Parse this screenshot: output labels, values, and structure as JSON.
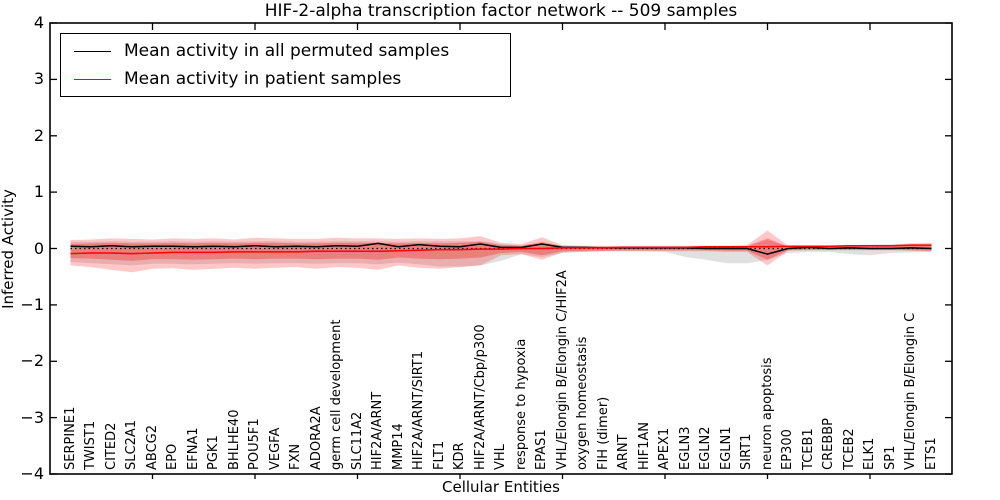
{
  "title": "HIF-2-alpha transcription factor network -- 509 samples",
  "axes": {
    "xlabel": "Cellular Entities",
    "ylabel": "Inferred Activity",
    "ytick_labels": [
      "4",
      "3",
      "2",
      "1",
      "0",
      "−1",
      "−2",
      "−3",
      "−4"
    ]
  },
  "legend": {
    "items": [
      {
        "label": "Mean activity in all permuted samples",
        "color": "#000000"
      },
      {
        "label": "Mean activity in patient samples",
        "color": "#ff0000"
      }
    ]
  },
  "chart_data": {
    "type": "line",
    "title": "HIF-2-alpha transcription factor network -- 509 samples",
    "xlabel": "Cellular Entities",
    "ylabel": "Inferred Activity",
    "ylim": [
      -4,
      4
    ],
    "xlim": [
      0,
      44
    ],
    "ytick_step": 1,
    "xtick_step": 5,
    "grid": false,
    "legend_position": "upper left",
    "zero_reference_line": 0,
    "categories": [
      "SERPINE1",
      "TWIST1",
      "CITED2",
      "SLC2A1",
      "ABCG2",
      "EPO",
      "EFNA1",
      "PGK1",
      "BHLHE40",
      "POU5F1",
      "VEGFA",
      "FXN",
      "ADORA2A",
      "germ cell development",
      "SLC11A2",
      "HIF2A/ARNT",
      "MMP14",
      "HIF2A/ARNT/SIRT1",
      "FLT1",
      "KDR",
      "HIF2A/ARNT/Cbp/p300",
      "VHL",
      "response to hypoxia",
      "EPAS1",
      "VHL/Elongin B/Elongin C/HIF2A",
      "oxygen homeostasis",
      "FIH (dimer)",
      "ARNT",
      "HIF1AN",
      "APEX1",
      "EGLN3",
      "EGLN2",
      "EGLN1",
      "SIRT1",
      "neuron apoptosis",
      "EP300",
      "TCEB1",
      "CREBBP",
      "TCEB2",
      "ELK1",
      "SP1",
      "VHL/Elongin B/Elongin C",
      "ETS1"
    ],
    "series": [
      {
        "name": "Mean activity in all permuted samples",
        "color": "#000000",
        "style": "solid",
        "values": [
          0.04,
          0.03,
          0.05,
          0.03,
          0.04,
          0.04,
          0.03,
          0.04,
          0.03,
          0.05,
          0.03,
          0.04,
          0.03,
          0.05,
          0.04,
          0.09,
          0.03,
          0.07,
          0.04,
          0.03,
          0.08,
          0.02,
          0.02,
          0.08,
          0.02,
          0.02,
          0.01,
          0.01,
          0.01,
          0.01,
          0.01,
          0.0,
          0.0,
          0.0,
          -0.1,
          0.0,
          0.02,
          0.0,
          0.01,
          0.0,
          0.0,
          0.01,
          0.0
        ]
      },
      {
        "name": "Mean activity in patient samples",
        "color": "#ff0000",
        "style": "solid",
        "values": [
          -0.09,
          -0.08,
          -0.08,
          -0.09,
          -0.08,
          -0.07,
          -0.07,
          -0.07,
          -0.06,
          -0.06,
          -0.06,
          -0.06,
          -0.05,
          -0.05,
          -0.05,
          -0.05,
          -0.04,
          -0.03,
          -0.02,
          -0.02,
          -0.01,
          -0.01,
          0.0,
          0.0,
          0.01,
          0.01,
          0.01,
          0.02,
          0.02,
          0.02,
          0.02,
          0.03,
          0.03,
          0.03,
          0.03,
          0.04,
          0.04,
          0.04,
          0.05,
          0.05,
          0.05,
          0.06,
          0.06
        ]
      }
    ],
    "bands": [
      {
        "name": "permuted-samples-spread",
        "color": "#000000",
        "opacity": 0.12,
        "upper": [
          0.12,
          0.12,
          0.13,
          0.12,
          0.12,
          0.13,
          0.12,
          0.13,
          0.12,
          0.13,
          0.13,
          0.12,
          0.12,
          0.13,
          0.13,
          0.13,
          0.12,
          0.13,
          0.13,
          0.13,
          0.13,
          0.08,
          0.05,
          0.1,
          0.05,
          0.04,
          0.04,
          0.04,
          0.04,
          0.04,
          0.04,
          0.04,
          0.04,
          0.05,
          0.15,
          0.04,
          0.04,
          0.04,
          0.05,
          0.05,
          0.05,
          0.06,
          0.06
        ],
        "lower": [
          -0.24,
          -0.26,
          -0.28,
          -0.3,
          -0.27,
          -0.27,
          -0.28,
          -0.27,
          -0.26,
          -0.27,
          -0.26,
          -0.26,
          -0.27,
          -0.26,
          -0.26,
          -0.28,
          -0.25,
          -0.28,
          -0.32,
          -0.32,
          -0.3,
          -0.22,
          -0.1,
          -0.15,
          -0.08,
          -0.06,
          -0.05,
          -0.05,
          -0.05,
          -0.06,
          -0.15,
          -0.2,
          -0.26,
          -0.26,
          -0.2,
          -0.08,
          -0.06,
          -0.06,
          -0.1,
          -0.12,
          -0.08,
          -0.07,
          -0.07
        ]
      },
      {
        "name": "patient-samples-outer-spread",
        "color": "#ff0000",
        "opacity": 0.22,
        "upper": [
          0.15,
          0.16,
          0.18,
          0.17,
          0.16,
          0.18,
          0.17,
          0.18,
          0.16,
          0.19,
          0.18,
          0.17,
          0.17,
          0.19,
          0.18,
          0.18,
          0.17,
          0.18,
          0.17,
          0.18,
          0.22,
          0.1,
          0.08,
          0.2,
          0.06,
          0.05,
          0.05,
          0.05,
          0.05,
          0.05,
          0.05,
          0.05,
          0.05,
          0.06,
          0.32,
          0.05,
          0.04,
          0.04,
          0.06,
          0.07,
          0.07,
          0.09,
          0.1
        ],
        "lower": [
          -0.3,
          -0.33,
          -0.38,
          -0.42,
          -0.36,
          -0.35,
          -0.38,
          -0.36,
          -0.34,
          -0.36,
          -0.34,
          -0.33,
          -0.36,
          -0.33,
          -0.34,
          -0.38,
          -0.3,
          -0.34,
          -0.36,
          -0.33,
          -0.3,
          -0.12,
          -0.1,
          -0.2,
          -0.07,
          -0.06,
          -0.05,
          -0.05,
          -0.05,
          -0.05,
          -0.05,
          -0.05,
          -0.06,
          -0.06,
          -0.3,
          -0.04,
          -0.03,
          -0.03,
          -0.03,
          -0.03,
          -0.03,
          -0.04,
          -0.05
        ]
      },
      {
        "name": "patient-samples-inner-spread",
        "color": "#ff0000",
        "opacity": 0.28,
        "upper": [
          0.08,
          0.09,
          0.1,
          0.09,
          0.09,
          0.1,
          0.09,
          0.1,
          0.09,
          0.1,
          0.1,
          0.09,
          0.09,
          0.1,
          0.1,
          0.1,
          0.09,
          0.1,
          0.09,
          0.1,
          0.12,
          0.06,
          0.05,
          0.12,
          0.04,
          0.03,
          0.03,
          0.03,
          0.03,
          0.03,
          0.03,
          0.03,
          0.03,
          0.04,
          0.18,
          0.03,
          0.03,
          0.03,
          0.04,
          0.04,
          0.04,
          0.05,
          0.06
        ],
        "lower": [
          -0.17,
          -0.18,
          -0.2,
          -0.22,
          -0.19,
          -0.19,
          -0.2,
          -0.19,
          -0.18,
          -0.19,
          -0.18,
          -0.18,
          -0.19,
          -0.18,
          -0.18,
          -0.2,
          -0.16,
          -0.18,
          -0.19,
          -0.18,
          -0.16,
          -0.08,
          -0.06,
          -0.12,
          -0.05,
          -0.04,
          -0.04,
          -0.03,
          -0.03,
          -0.03,
          -0.03,
          -0.03,
          -0.04,
          -0.04,
          -0.2,
          -0.03,
          -0.02,
          -0.02,
          -0.02,
          -0.02,
          -0.02,
          -0.03,
          -0.04
        ]
      }
    ]
  }
}
